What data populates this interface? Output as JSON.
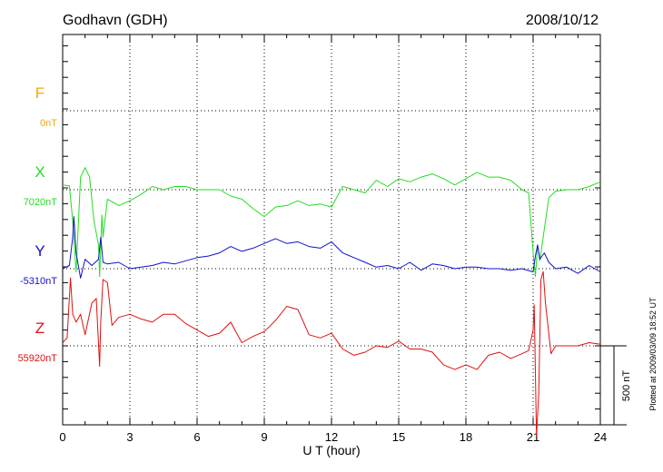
{
  "chart_data": {
    "type": "line",
    "title": "Godhavn (GDH)",
    "date": "2008/10/12",
    "xlabel": "U T (hour)",
    "xlim": [
      0,
      24
    ],
    "x_ticks": [
      "0",
      "3",
      "6",
      "9",
      "12",
      "15",
      "18",
      "21",
      "24"
    ],
    "scale_label": "500 nT",
    "credit": "Plotted at 2009/03/09 18:52 UT",
    "colors": {
      "F": "#f5a800",
      "X": "#22dd22",
      "Y": "#1010d0",
      "Z": "#e01010"
    },
    "series": [
      {
        "name": "F",
        "baseline_label": "0nT",
        "x": [],
        "values": []
      },
      {
        "name": "X",
        "baseline_label": "7020nT",
        "x": [
          0,
          0.3,
          0.45,
          0.6,
          0.8,
          1.0,
          1.2,
          1.4,
          1.6,
          1.65,
          1.75,
          1.8,
          2.0,
          2.5,
          3.0,
          3.5,
          4.0,
          4.5,
          5.0,
          5.5,
          6.0,
          6.5,
          7.0,
          7.5,
          8.0,
          8.5,
          9.0,
          9.5,
          10.0,
          10.5,
          11.0,
          11.5,
          12.0,
          12.5,
          13.0,
          13.5,
          14.0,
          14.5,
          15.0,
          15.5,
          16.0,
          16.5,
          17.0,
          17.5,
          18.0,
          18.5,
          19.0,
          19.5,
          20.0,
          20.5,
          20.8,
          21.0,
          21.1,
          21.2,
          21.3,
          21.5,
          21.7,
          22.0,
          22.5,
          23.0,
          23.5,
          24.0
        ],
        "values": [
          30,
          25,
          -200,
          -520,
          80,
          140,
          80,
          -200,
          -350,
          -550,
          -160,
          -300,
          -60,
          -100,
          -70,
          -30,
          20,
          0,
          20,
          20,
          0,
          0,
          0,
          -40,
          -60,
          -120,
          -170,
          -110,
          -100,
          -70,
          -100,
          -90,
          -110,
          20,
          0,
          -20,
          60,
          20,
          70,
          50,
          80,
          100,
          70,
          30,
          70,
          110,
          80,
          80,
          60,
          0,
          -20,
          -400,
          -550,
          -350,
          -450,
          -250,
          -50,
          -10,
          0,
          0,
          20,
          50
        ]
      },
      {
        "name": "Y",
        "baseline_label": "-5310nT",
        "x": [
          0,
          0.3,
          0.45,
          0.5,
          0.6,
          0.8,
          1.0,
          1.3,
          1.6,
          1.7,
          1.8,
          2.0,
          2.5,
          3.0,
          3.5,
          4.0,
          4.5,
          5.0,
          5.5,
          6.0,
          6.5,
          7.0,
          7.5,
          8.0,
          8.5,
          9.0,
          9.5,
          10.0,
          10.5,
          11.0,
          11.5,
          12.0,
          12.5,
          13.0,
          13.5,
          14.0,
          14.5,
          15.0,
          15.5,
          16.0,
          16.5,
          17.0,
          17.5,
          18.0,
          18.5,
          19.0,
          19.5,
          20.0,
          20.5,
          21.0,
          21.1,
          21.2,
          21.3,
          21.5,
          21.7,
          22.0,
          22.5,
          23.0,
          23.5,
          24.0
        ],
        "values": [
          0,
          20,
          200,
          330,
          100,
          -60,
          60,
          20,
          60,
          200,
          40,
          30,
          40,
          0,
          10,
          20,
          40,
          30,
          50,
          70,
          80,
          100,
          140,
          110,
          130,
          160,
          190,
          160,
          170,
          140,
          130,
          170,
          100,
          70,
          40,
          10,
          20,
          0,
          40,
          -10,
          30,
          20,
          0,
          10,
          10,
          0,
          0,
          -10,
          0,
          -20,
          80,
          150,
          60,
          100,
          40,
          0,
          10,
          -30,
          20,
          -20
        ]
      },
      {
        "name": "Z",
        "baseline_label": "55920nT",
        "x": [
          0,
          0.2,
          0.35,
          0.45,
          0.6,
          0.8,
          1.0,
          1.3,
          1.5,
          1.65,
          1.7,
          1.8,
          2.0,
          2.2,
          2.5,
          3.0,
          3.5,
          4.0,
          4.5,
          5.0,
          5.5,
          6.0,
          6.5,
          7.0,
          7.5,
          8.0,
          8.5,
          9.0,
          9.5,
          10.0,
          10.5,
          11.0,
          11.5,
          12.0,
          12.5,
          13.0,
          13.5,
          14.0,
          14.5,
          15.0,
          15.5,
          16.0,
          16.5,
          17.0,
          17.5,
          18.0,
          18.5,
          19.0,
          19.5,
          20.0,
          20.5,
          20.8,
          21.0,
          21.05,
          21.15,
          21.25,
          21.35,
          21.45,
          21.55,
          21.8,
          22.0,
          22.5,
          23.0,
          23.5,
          24.0
        ],
        "values": [
          20,
          50,
          430,
          200,
          150,
          200,
          70,
          270,
          300,
          -130,
          150,
          420,
          400,
          130,
          180,
          200,
          170,
          150,
          200,
          200,
          140,
          100,
          60,
          80,
          150,
          20,
          60,
          90,
          160,
          250,
          230,
          70,
          50,
          80,
          -20,
          -60,
          -40,
          0,
          -10,
          30,
          -20,
          -20,
          -40,
          -120,
          -150,
          -120,
          -150,
          -60,
          -40,
          -80,
          -50,
          -30,
          100,
          260,
          -570,
          -300,
          420,
          470,
          270,
          -50,
          0,
          0,
          0,
          20,
          10
        ]
      }
    ]
  }
}
